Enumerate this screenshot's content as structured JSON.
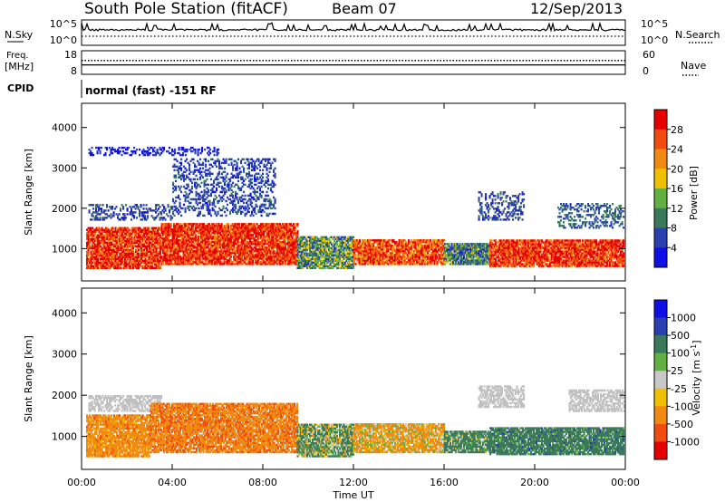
{
  "header": {
    "station": "South Pole Station (fitACF)",
    "beam": "Beam 07",
    "date": "12/Sep/2013"
  },
  "top_panels": {
    "nsky_label": "N.Sky",
    "nsearch_label": "N.Search",
    "freq_label_line1": "Freq.",
    "freq_label_line2": "[MHz]",
    "nave_label": "Nave",
    "cpid_label": "CPID",
    "cpid_value": "normal (fast) -151 RF",
    "noise_ticks_left": [
      "10^5",
      "10^0"
    ],
    "noise_ticks_right": [
      "10^5",
      "10^0"
    ],
    "freq_ticks": [
      "18",
      "8"
    ],
    "nave_ticks": [
      "60",
      "0"
    ],
    "freq_value_mhz": 12,
    "nave_value": 33
  },
  "colors": {
    "power_scale": [
      "#1010e6",
      "#2a3fb0",
      "#3a7a5a",
      "#62b042",
      "#f0c000",
      "#f08a10",
      "#f04c10",
      "#e60000"
    ],
    "velocity_scale": [
      "#e60000",
      "#f04c10",
      "#f08a10",
      "#f0c000",
      "#c8c8c8",
      "#62b042",
      "#3a7a5a",
      "#2a3fb0",
      "#1010e6"
    ],
    "velocity_ground_scatter": "#c0c0c0"
  },
  "chart_data": [
    {
      "type": "heatmap",
      "panel": "power",
      "ylabel": "Slant Range [km]",
      "yticks": [
        "1000",
        "2000",
        "3000",
        "4000"
      ],
      "ylim": [
        200,
        4600
      ],
      "xlim": [
        0,
        24
      ],
      "colorbar_label": "Power [dB]",
      "colorbar_ticks": [
        "4",
        "8",
        "12",
        "16",
        "20",
        "24",
        "28"
      ],
      "colorbar_range": [
        0,
        32
      ],
      "dominant_power_db": [
        {
          "start": 0.2,
          "end": 3.5,
          "range_low": 500,
          "range_high": 1500,
          "power_db": 28
        },
        {
          "start": 3.5,
          "end": 9.5,
          "range_low": 600,
          "range_high": 1600,
          "power_db": 28
        },
        {
          "start": 9.5,
          "end": 12.0,
          "range_low": 500,
          "range_high": 1300,
          "power_db": 12
        },
        {
          "start": 12.0,
          "end": 16.0,
          "range_low": 600,
          "range_high": 1200,
          "power_db": 26
        },
        {
          "start": 16.0,
          "end": 18.0,
          "range_low": 600,
          "range_high": 1100,
          "power_db": 10
        },
        {
          "start": 18.0,
          "end": 23.9,
          "range_low": 550,
          "range_high": 1200,
          "power_db": 28
        }
      ],
      "far_range_echoes": [
        {
          "start": 0.3,
          "end": 4.0,
          "range_low": 1700,
          "range_high": 2100,
          "power_db": 6
        },
        {
          "start": 4.0,
          "end": 8.5,
          "range_low": 1800,
          "range_high": 3200,
          "power_db": 6
        },
        {
          "start": 0.3,
          "end": 6.0,
          "range_low": 3300,
          "range_high": 3500,
          "power_db": 4
        },
        {
          "start": 17.5,
          "end": 19.5,
          "range_low": 1700,
          "range_high": 2400,
          "power_db": 6
        },
        {
          "start": 21.0,
          "end": 23.9,
          "range_low": 1500,
          "range_high": 2100,
          "power_db": 8
        }
      ]
    },
    {
      "type": "heatmap",
      "panel": "velocity",
      "xlabel": "Time UT",
      "xticks": [
        "00:00",
        "04:00",
        "08:00",
        "12:00",
        "16:00",
        "20:00",
        "00:00"
      ],
      "ylabel": "Slant Range [km]",
      "yticks": [
        "1000",
        "2000",
        "3000",
        "4000"
      ],
      "ylim": [
        200,
        4600
      ],
      "xlim": [
        0,
        24
      ],
      "colorbar_label": "Velocity [m s^-1]",
      "colorbar_ticks": [
        "1000",
        "500",
        "100",
        "25",
        "-25",
        "-100",
        "-500",
        "-1000"
      ],
      "dominant_velocity_ms": [
        {
          "start": 0.2,
          "end": 3.0,
          "range_low": 500,
          "range_high": 1500,
          "velocity_ms": -300
        },
        {
          "start": 3.0,
          "end": 9.5,
          "range_low": 600,
          "range_high": 1800,
          "velocity_ms": -400
        },
        {
          "start": 9.5,
          "end": 12.0,
          "range_low": 500,
          "range_high": 1300,
          "velocity_ms": 100
        },
        {
          "start": 12.0,
          "end": 16.0,
          "range_low": 600,
          "range_high": 1300,
          "velocity_ms": -150
        },
        {
          "start": 16.0,
          "end": 18.0,
          "range_low": 600,
          "range_high": 1100,
          "velocity_ms": 200
        },
        {
          "start": 18.0,
          "end": 23.9,
          "range_low": 550,
          "range_high": 1200,
          "velocity_ms": 300
        }
      ],
      "ground_scatter": [
        {
          "start": 0.3,
          "end": 3.5,
          "range_low": 1600,
          "range_high": 2000
        },
        {
          "start": 17.5,
          "end": 19.5,
          "range_low": 1700,
          "range_high": 2200
        },
        {
          "start": 21.5,
          "end": 23.9,
          "range_low": 1600,
          "range_high": 2100
        }
      ]
    }
  ]
}
